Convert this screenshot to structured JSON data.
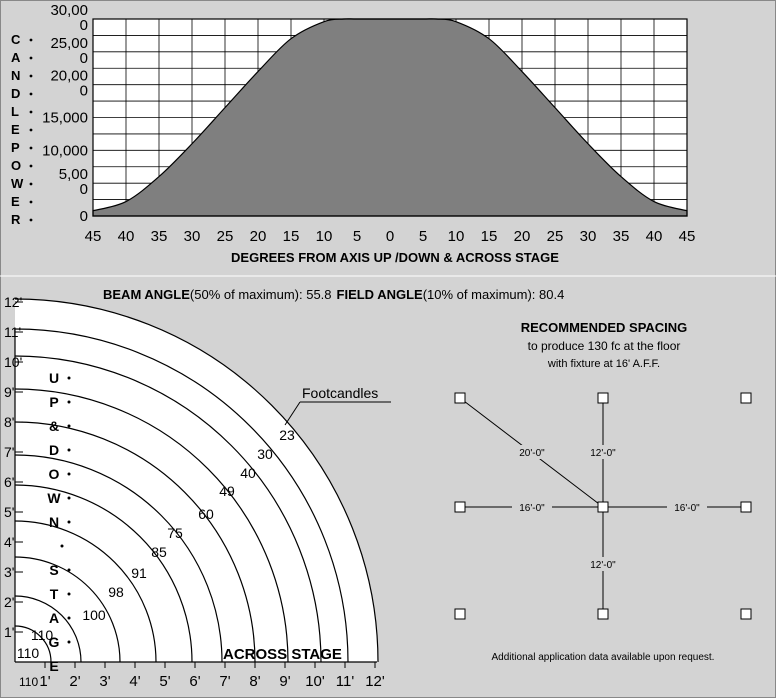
{
  "chart_data": [
    {
      "type": "area",
      "title": "",
      "ylabel": "CANDLEPOWER",
      "xlabel": "DEGREES FROM AXIS UP /DOWN & ACROSS STAGE",
      "ylim": [
        0,
        30000
      ],
      "yticks": [
        0,
        5000,
        10000,
        15000,
        20000,
        25000,
        30000
      ],
      "ytick_labels": [
        "0",
        "5,00\n0",
        "10,000",
        "15,000",
        "20,00\n0",
        "25,00\n0",
        "30,00\n0"
      ],
      "xtick_labels": [
        "45",
        "40",
        "35",
        "30",
        "25",
        "20",
        "15",
        "10",
        "5",
        "0",
        "5",
        "10",
        "15",
        "20",
        "25",
        "30",
        "35",
        "40",
        "45"
      ],
      "grid": true,
      "x": [
        -45,
        -40,
        -35,
        -30,
        -25,
        -20,
        -15,
        -10,
        -7,
        -5,
        0,
        5,
        7,
        10,
        15,
        20,
        25,
        30,
        35,
        40,
        45
      ],
      "values": [
        800,
        2200,
        6000,
        11000,
        16500,
        22000,
        27000,
        29600,
        30000,
        30000,
        30000,
        30000,
        30000,
        29600,
        27000,
        22000,
        16500,
        11000,
        6000,
        2200,
        800
      ],
      "fill": "#7f7f7f"
    },
    {
      "type": "isoline",
      "xlabel": "ACROSS STAGE",
      "ylabel": "UP & DOWN STAGE",
      "x_tick_labels": [
        "1'",
        "2'",
        "3'",
        "4'",
        "5'",
        "6'",
        "7'",
        "8'",
        "9'",
        "10'",
        "11'",
        "12'"
      ],
      "y_tick_labels": [
        "1'",
        "2'",
        "3'",
        "4'",
        "5'",
        "6'",
        "7'",
        "8'",
        "9'",
        "10'",
        "11'",
        "12'"
      ],
      "corner_label": "110",
      "radii_ft": [
        1.2,
        2.2,
        3.5,
        4.7,
        5.9,
        6.9,
        8.0,
        9.1,
        10.2,
        11.1,
        12.1
      ],
      "contour_values": [
        "110",
        "110",
        "100",
        "98",
        "91",
        "85",
        "75",
        "60",
        "49",
        "40",
        "30",
        "23"
      ],
      "annotation": "Footcandles"
    }
  ],
  "ylabel_letters": [
    "C",
    "A",
    "N",
    "D",
    "L",
    "E",
    "P",
    "O",
    "W",
    "E",
    "R"
  ],
  "updown_letters": [
    "U",
    "P",
    "&",
    "D",
    "O",
    "W",
    "N",
    "",
    "S",
    "T",
    "A",
    "G",
    "E"
  ],
  "beam_field": {
    "beam_label": "BEAM ANGLE",
    "beam_text": "(50% of maximum): 55.8",
    "field_label": "FIELD ANGLE",
    "field_text": "(10% of maximum): 80.4"
  },
  "spacing": {
    "title": "RECOMMENDED SPACING",
    "line1": "to produce 130 fc at the floor",
    "line2": "with fixture at 16' A.F.F.",
    "diag_label": "20'-0\"",
    "vert_label": "12'-0\"",
    "horiz_label": "16'-0\"",
    "footer": "Additional application data available upon request."
  },
  "colors": {
    "panel": "#d3d3d3",
    "area": "#7f7f7f",
    "plot_bg": "#ffffff"
  }
}
